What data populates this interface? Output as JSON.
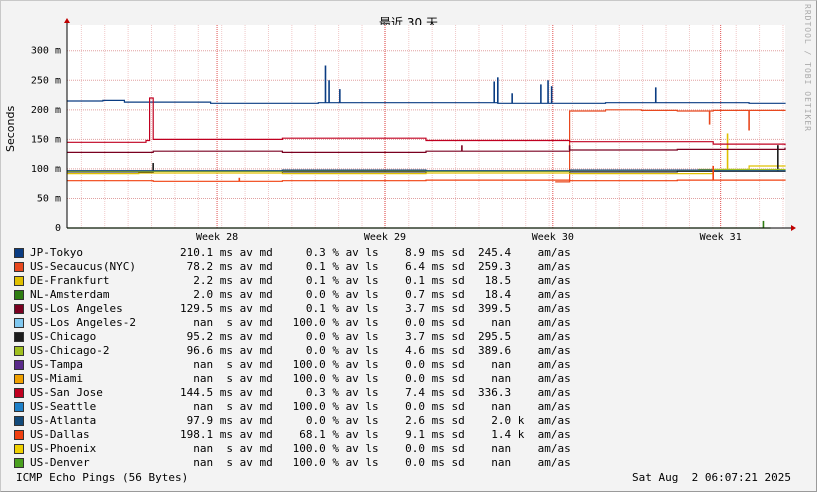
{
  "chart_data": {
    "type": "line",
    "title": "最近 30 天",
    "ylabel": "Seconds",
    "watermark": "RRDTOOL / TOBI OETIKER",
    "ylim": [
      0,
      330
    ],
    "yticks": [
      {
        "value": 0,
        "label": "0"
      },
      {
        "value": 50,
        "label": "50 m"
      },
      {
        "value": 100,
        "label": "100 m"
      },
      {
        "value": 150,
        "label": "150 m"
      },
      {
        "value": 200,
        "label": "200 m"
      },
      {
        "value": 250,
        "label": "250 m"
      },
      {
        "value": 300,
        "label": "300 m"
      }
    ],
    "xticks": [
      "Week 28",
      "Week 29",
      "Week 30",
      "Week 31"
    ],
    "grid": true,
    "series": [
      {
        "name": "JP-Tokyo",
        "color": "#0a3c82",
        "points": [
          [
            0,
            215
          ],
          [
            0.05,
            216
          ],
          [
            0.08,
            213
          ],
          [
            0.2,
            211
          ],
          [
            0.35,
            212
          ],
          [
            0.5,
            212
          ],
          [
            0.6,
            211
          ],
          [
            0.75,
            212
          ],
          [
            0.88,
            212
          ],
          [
            0.95,
            211
          ],
          [
            1,
            212
          ]
        ],
        "spikes": [
          [
            0.36,
            275
          ],
          [
            0.365,
            250
          ],
          [
            0.38,
            235
          ],
          [
            0.595,
            248
          ],
          [
            0.6,
            255
          ],
          [
            0.62,
            228
          ],
          [
            0.66,
            243
          ],
          [
            0.67,
            250
          ],
          [
            0.675,
            240
          ],
          [
            0.82,
            238
          ]
        ]
      },
      {
        "name": "US-Secaucus(NYC)",
        "color": "#e8481e",
        "points": [
          [
            0.68,
            78
          ],
          [
            0.7,
            198
          ],
          [
            0.75,
            200
          ],
          [
            0.8,
            199
          ],
          [
            0.85,
            198
          ],
          [
            0.9,
            199
          ],
          [
            1,
            198
          ]
        ],
        "spikes": [
          [
            0.895,
            175
          ],
          [
            0.95,
            165
          ]
        ]
      },
      {
        "name": "DE-Frankfurt",
        "color": "#e0c000",
        "points": [
          [
            0,
            92
          ],
          [
            0.1,
            93
          ],
          [
            0.3,
            92
          ],
          [
            0.5,
            93
          ],
          [
            0.7,
            92
          ],
          [
            0.9,
            99
          ],
          [
            0.95,
            105
          ],
          [
            1,
            106
          ]
        ],
        "spikes": [
          [
            0.92,
            160
          ]
        ]
      },
      {
        "name": "NL-Amsterdam",
        "color": "#2e7d12",
        "points": [
          [
            0,
            0
          ],
          [
            0.98,
            0
          ]
        ],
        "spikes": [
          [
            0.97,
            12
          ]
        ]
      },
      {
        "name": "US-Los Angeles",
        "color": "#7a0020",
        "points": [
          [
            0,
            128
          ],
          [
            0.12,
            130
          ],
          [
            0.3,
            128
          ],
          [
            0.5,
            130
          ],
          [
            0.7,
            132
          ],
          [
            0.85,
            133
          ],
          [
            1,
            136
          ]
        ],
        "spikes": [
          [
            0.7,
            140
          ],
          [
            0.55,
            140
          ],
          [
            0.99,
            140
          ]
        ]
      },
      {
        "name": "US-Los Angeles-2",
        "color": "#80c8f0",
        "points": []
      },
      {
        "name": "US-Chicago",
        "color": "#1c1c1c",
        "points": [
          [
            0,
            95
          ],
          [
            0.12,
            96
          ],
          [
            0.3,
            95
          ],
          [
            0.5,
            96
          ],
          [
            0.7,
            95
          ],
          [
            0.85,
            96
          ],
          [
            1,
            95
          ]
        ],
        "spikes": [
          [
            0.12,
            110
          ],
          [
            0.99,
            140
          ]
        ]
      },
      {
        "name": "US-Chicago-2",
        "color": "#a0c020",
        "points": [
          [
            0,
            96
          ],
          [
            0.3,
            97
          ],
          [
            0.5,
            96
          ],
          [
            0.7,
            98
          ],
          [
            0.88,
            99
          ],
          [
            1,
            100
          ]
        ],
        "spikes": []
      },
      {
        "name": "US-Tampa",
        "color": "#5a2a8a",
        "points": []
      },
      {
        "name": "US-Miami",
        "color": "#f0a000",
        "points": []
      },
      {
        "name": "US-San Jose",
        "color": "#c00020",
        "points": [
          [
            0,
            145
          ],
          [
            0.11,
            148
          ],
          [
            0.115,
            220
          ],
          [
            0.12,
            150
          ],
          [
            0.3,
            152
          ],
          [
            0.5,
            148
          ],
          [
            0.7,
            146
          ],
          [
            0.9,
            142
          ],
          [
            1,
            140
          ]
        ],
        "spikes": []
      },
      {
        "name": "US-Seattle",
        "color": "#1e80c8",
        "points": []
      },
      {
        "name": "US-Atlanta",
        "color": "#124a7a",
        "points": [
          [
            0,
            97
          ],
          [
            0.3,
            98
          ],
          [
            0.5,
            97
          ],
          [
            0.7,
            98
          ],
          [
            0.9,
            97
          ],
          [
            1,
            98
          ]
        ],
        "spikes": []
      },
      {
        "name": "US-Dallas",
        "color": "#f04010",
        "points": [
          [
            0,
            80
          ],
          [
            0.12,
            79
          ],
          [
            0.3,
            80
          ],
          [
            0.5,
            81
          ],
          [
            0.7,
            80
          ],
          [
            0.85,
            81
          ],
          [
            1,
            80
          ]
        ],
        "spikes": [
          [
            0.24,
            85
          ],
          [
            0.9,
            105
          ]
        ]
      },
      {
        "name": "US-Phoenix",
        "color": "#f0d000",
        "points": []
      },
      {
        "name": "US-Denver",
        "color": "#4aa020",
        "points": []
      }
    ]
  },
  "legend": [
    {
      "name": "JP-Tokyo",
      "color": "#0a3c82",
      "stats": "210.1 ms av md     0.3 % av ls    8.9 ms sd  245.4    am/as"
    },
    {
      "name": "US-Secaucus(NYC)",
      "color": "#e8481e",
      "stats": " 78.2 ms av md     0.1 % av ls    6.4 ms sd  259.3    am/as"
    },
    {
      "name": "DE-Frankfurt",
      "color": "#e0c000",
      "stats": "  2.2 ms av md     0.1 % av ls    0.1 ms sd   18.5    am/as"
    },
    {
      "name": "NL-Amsterdam",
      "color": "#2e7d12",
      "stats": "  2.0 ms av md     0.0 % av ls    0.7 ms sd   18.4    am/as"
    },
    {
      "name": "US-Los Angeles",
      "color": "#7a0020",
      "stats": "129.5 ms av md     0.1 % av ls    3.7 ms sd  399.5    am/as"
    },
    {
      "name": "US-Los Angeles-2",
      "color": "#80c8f0",
      "stats": "  nan  s av md   100.0 % av ls    0.0 ms sd    nan    am/as"
    },
    {
      "name": "US-Chicago",
      "color": "#1c1c1c",
      "stats": " 95.2 ms av md     0.0 % av ls    3.7 ms sd  295.5    am/as"
    },
    {
      "name": "US-Chicago-2",
      "color": "#a0c020",
      "stats": " 96.6 ms av md     0.0 % av ls    4.6 ms sd  389.6    am/as"
    },
    {
      "name": "US-Tampa",
      "color": "#5a2a8a",
      "stats": "  nan  s av md   100.0 % av ls    0.0 ms sd    nan    am/as"
    },
    {
      "name": "US-Miami",
      "color": "#f0a000",
      "stats": "  nan  s av md   100.0 % av ls    0.0 ms sd    nan    am/as"
    },
    {
      "name": "US-San Jose",
      "color": "#c00020",
      "stats": "144.5 ms av md     0.3 % av ls    7.4 ms sd  336.3    am/as"
    },
    {
      "name": "US-Seattle",
      "color": "#1e80c8",
      "stats": "  nan  s av md   100.0 % av ls    0.0 ms sd    nan    am/as"
    },
    {
      "name": "US-Atlanta",
      "color": "#124a7a",
      "stats": " 97.9 ms av md     0.0 % av ls    2.6 ms sd    2.0 k  am/as"
    },
    {
      "name": "US-Dallas",
      "color": "#f04010",
      "stats": "198.1 ms av md    68.1 % av ls    9.1 ms sd    1.4 k  am/as"
    },
    {
      "name": "US-Phoenix",
      "color": "#f0d000",
      "stats": "  nan  s av md   100.0 % av ls    0.0 ms sd    nan    am/as"
    },
    {
      "name": "US-Denver",
      "color": "#4aa020",
      "stats": "  nan  s av md   100.0 % av ls    0.0 ms sd    nan    am/as"
    }
  ],
  "footer": {
    "left": "ICMP Echo Pings (56 Bytes)",
    "right": "Sat Aug  2 06:07:21 2025"
  }
}
